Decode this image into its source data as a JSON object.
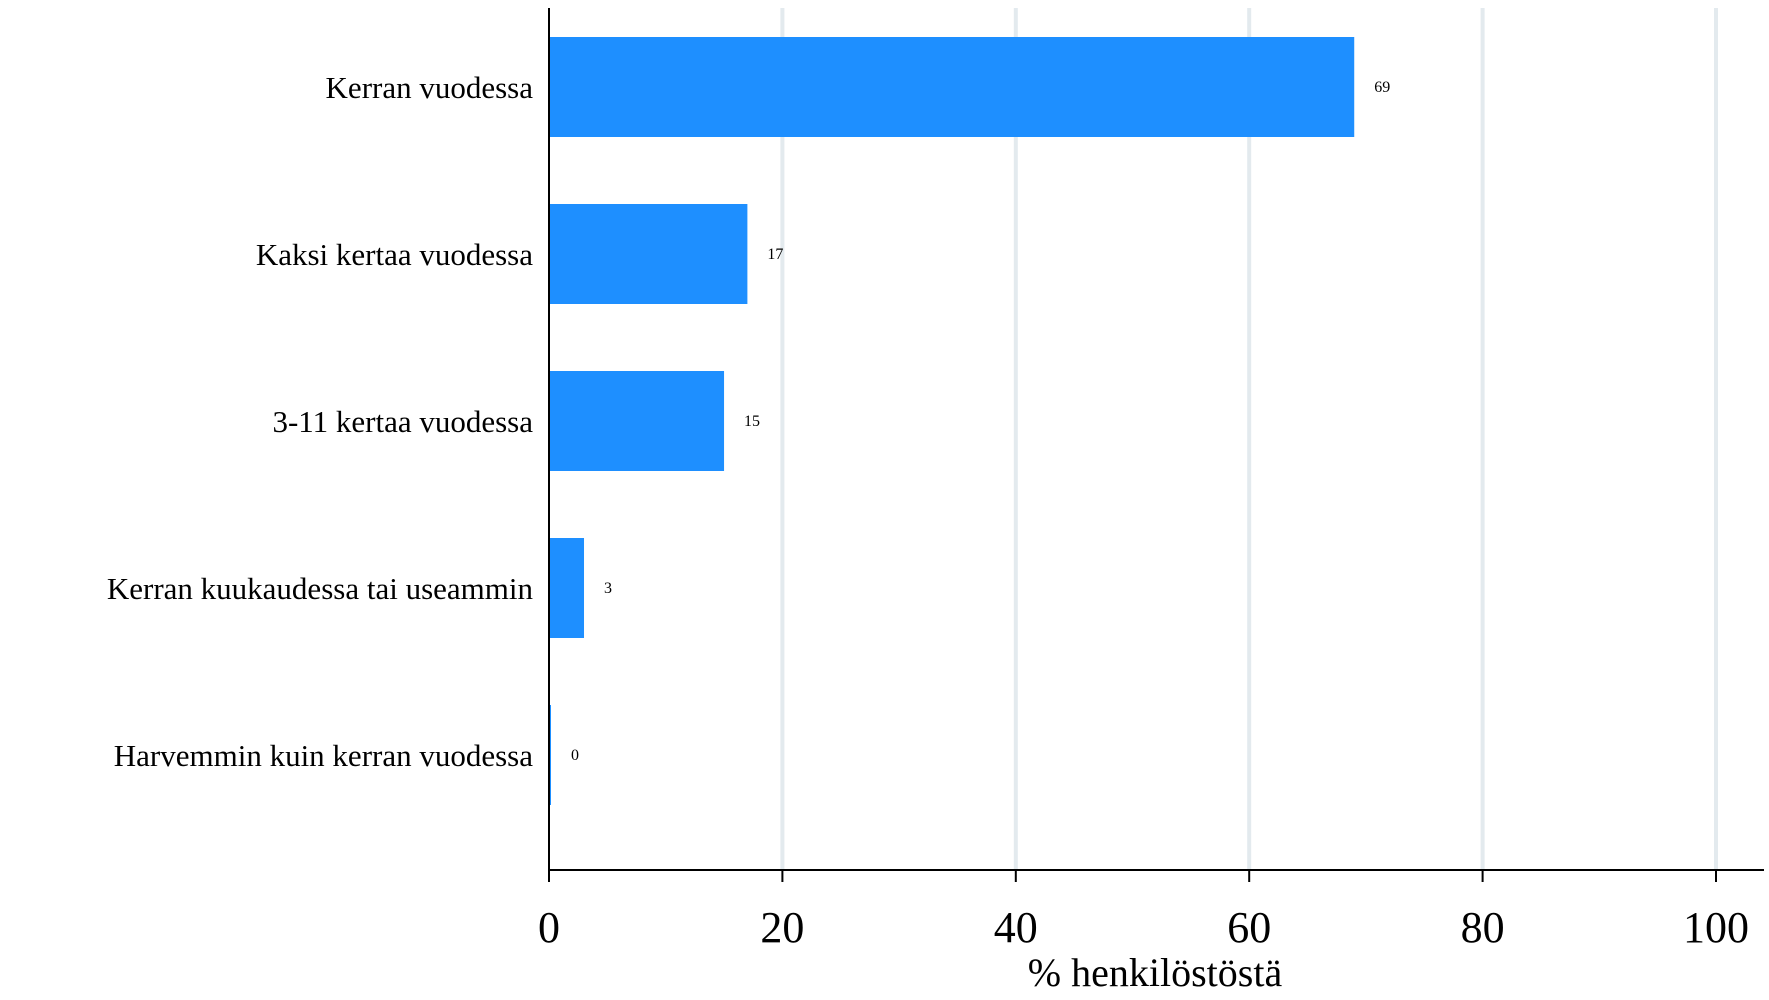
{
  "chart_data": {
    "type": "bar",
    "orientation": "horizontal",
    "title": "",
    "xlabel": "% henkilöstöstä",
    "ylabel": "",
    "categories": [
      "Kerran vuodessa",
      "Kaksi kertaa vuodessa",
      "3-11 kertaa vuodessa",
      "Kerran kuukaudessa tai useammin",
      "Harvemmin kuin kerran vuodessa"
    ],
    "values": [
      69,
      17,
      15,
      3,
      0
    ],
    "data_labels": [
      "69",
      "17",
      "15",
      "3",
      "0"
    ],
    "xlim": [
      0,
      100
    ],
    "xticks": [
      0,
      20,
      40,
      60,
      80,
      100
    ],
    "xtick_labels": [
      "0",
      "20",
      "40",
      "60",
      "80",
      "100"
    ],
    "grid": "vertical",
    "legend": "none",
    "colors": {
      "bar": "#1e8fff",
      "grid": "#e3eaee",
      "axis": "#000000",
      "text": "#000000"
    }
  }
}
